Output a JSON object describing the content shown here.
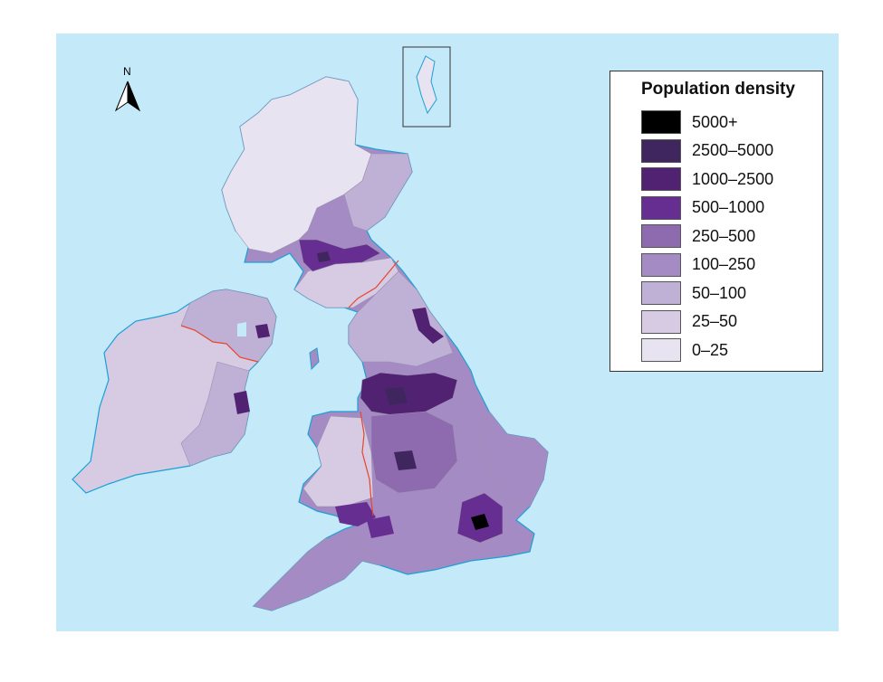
{
  "map": {
    "north_label": "N",
    "colors": {
      "sea": "#c4e9f8",
      "coast": "#1aa0d8",
      "border": "#e8452c",
      "internal_boundary": "#9a90b0"
    }
  },
  "legend": {
    "title": "Population density",
    "items": [
      {
        "label": "5000+",
        "color": "#000000"
      },
      {
        "label": "2500–5000",
        "color": "#40265e"
      },
      {
        "label": "1000–2500",
        "color": "#512272"
      },
      {
        "label": "500–1000",
        "color": "#672e91"
      },
      {
        "label": "250–500",
        "color": "#8e6aae"
      },
      {
        "label": "100–250",
        "color": "#a58bc3"
      },
      {
        "label": "50–100",
        "color": "#bfb0d6"
      },
      {
        "label": "25–50",
        "color": "#d6cbe3"
      },
      {
        "label": "0–25",
        "color": "#e8e3f0"
      }
    ]
  }
}
